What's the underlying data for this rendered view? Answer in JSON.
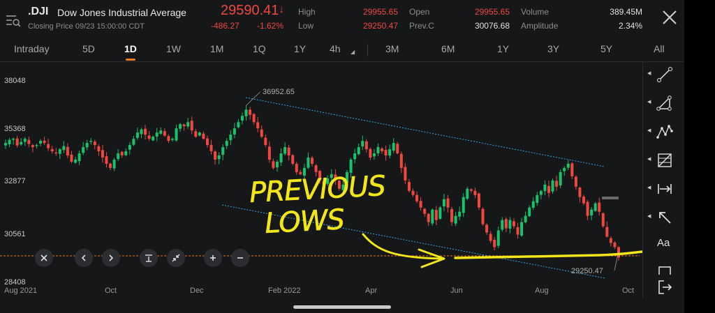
{
  "header": {
    "symbol": ".DJI",
    "name": "Dow Jones Industrial Average",
    "closing": "Closing Price  09/23 15:00:00 CDT",
    "price": "29590.41",
    "price_arrow": "↓",
    "change": "-486.27",
    "change_pct": "-1.62%",
    "stats": [
      {
        "label": "High",
        "value": "29955.65",
        "color": "red"
      },
      {
        "label": "Low",
        "value": "29250.47",
        "color": "red"
      },
      {
        "label": "Open",
        "value": "29955.65",
        "color": "red"
      },
      {
        "label": "Prev.C",
        "value": "30076.68",
        "color": "white"
      },
      {
        "label": "Volume",
        "value": "389.45M",
        "color": "white"
      },
      {
        "label": "Amplitude",
        "value": "2.34%",
        "color": "white"
      }
    ]
  },
  "tabs": [
    "Intraday",
    "5D",
    "1D",
    "1W",
    "1M",
    "1Q",
    "1Y",
    "4h",
    "3M",
    "6M",
    "1Y",
    "3Y",
    "5Y",
    "All"
  ],
  "active_tab": "1D",
  "chart_data": {
    "type": "candlestick",
    "y_ticks": [
      "38048",
      "35368",
      "32877",
      "30561",
      "28408"
    ],
    "x_ticks": [
      "Aug 2021",
      "Oct",
      "Dec",
      "Feb 2022",
      "Apr",
      "Jun",
      "Aug",
      "Oct"
    ],
    "high_label": "36952.65",
    "low_label": "29250.47",
    "ylim": [
      28408,
      38048
    ],
    "colors": {
      "up": "#19c26b",
      "down": "#f0483e",
      "channel": "#35a7e6",
      "price_line": "#f07a1a",
      "annotation": "#f2e61a"
    },
    "closes": [
      35100,
      35250,
      35300,
      34980,
      35150,
      35300,
      35050,
      34900,
      35000,
      35200,
      35100,
      34850,
      34700,
      34600,
      34800,
      34950,
      34500,
      34200,
      34300,
      34600,
      34900,
      35100,
      35200,
      35000,
      34700,
      34400,
      34100,
      33900,
      34300,
      34600,
      34500,
      34700,
      35000,
      35300,
      35600,
      35750,
      35500,
      35300,
      35400,
      35600,
      35700,
      35450,
      35200,
      35300,
      35800,
      36000,
      35900,
      36100,
      35700,
      35400,
      35600,
      35300,
      35000,
      34700,
      34300,
      34500,
      34900,
      35200,
      35500,
      35800,
      36100,
      36400,
      36700,
      36450,
      36100,
      35800,
      35400,
      35000,
      34300,
      33900,
      34200,
      34600,
      34900,
      34500,
      34100,
      33700,
      33600,
      33900,
      34400,
      34100,
      33700,
      33300,
      33100,
      33400,
      33600,
      33300,
      32900,
      33100,
      33700,
      34300,
      34600,
      34900,
      35200,
      34800,
      34400,
      34600,
      34900,
      34700,
      34500,
      34800,
      35100,
      34600,
      33900,
      33300,
      32800,
      32600,
      32300,
      32000,
      31700,
      31300,
      31900,
      31400,
      32000,
      32400,
      32000,
      31300,
      31600,
      31800,
      32500,
      32900,
      32800,
      32600,
      32000,
      31200,
      30800,
      30400,
      30100,
      30900,
      31400,
      31000,
      31400,
      31100,
      30700,
      31300,
      31600,
      32000,
      32300,
      32600,
      32800,
      33100,
      32700,
      33300,
      33000,
      33700,
      33900,
      34100,
      33500,
      33000,
      32500,
      32200,
      31600,
      31900,
      32200,
      31800,
      31100,
      30600,
      30300,
      30100,
      29600
    ],
    "annotation_text": [
      "PREVIOUS",
      "LOWS"
    ]
  },
  "controls": {
    "zoom": [
      "close-icon",
      "prev-icon",
      "next-icon",
      "period-icon",
      "collapse-icon",
      "zoom-in-icon",
      "zoom-out-icon"
    ]
  },
  "tools": [
    "line-tool-icon",
    "triangle-tool-icon",
    "pattern-tool-icon",
    "fib-tool-icon",
    "measure-tool-icon",
    "arrow-tool-icon",
    "text-tool-icon",
    "rect-tool-icon",
    "export-icon"
  ],
  "tool_text": "Aa"
}
